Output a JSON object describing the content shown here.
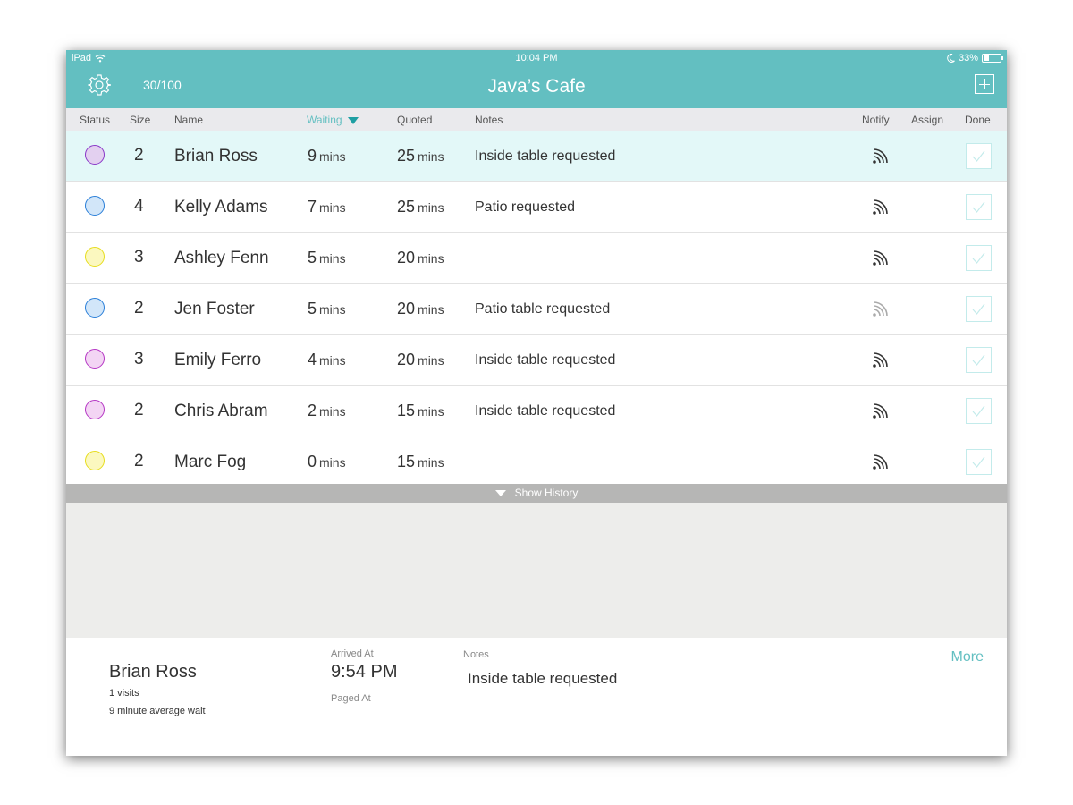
{
  "status_bar": {
    "carrier": "iPad",
    "time": "10:04 PM",
    "battery": "33%"
  },
  "header": {
    "count": "30/100",
    "title": "Java’s Cafe"
  },
  "columns": {
    "status": "Status",
    "size": "Size",
    "name": "Name",
    "waiting": "Waiting",
    "quoted": "Quoted",
    "notes": "Notes",
    "notify": "Notify",
    "assign": "Assign",
    "done": "Done"
  },
  "colors": {
    "accent": "#63bfc1",
    "purple": {
      "fill": "#e3d0f0",
      "stroke": "#8a39c8"
    },
    "blue": {
      "fill": "#d2e6f9",
      "stroke": "#2b7fd8"
    },
    "yellow": {
      "fill": "#fbf8bf",
      "stroke": "#e7dd1e"
    },
    "magenta": {
      "fill": "#f3d5f4",
      "stroke": "#b536c4"
    }
  },
  "rows": [
    {
      "status": "purple",
      "size": "2",
      "name": "Brian Ross",
      "waiting": "9",
      "quoted": "25",
      "notes": "Inside table requested",
      "notify_icon": "rss-icon",
      "notify_active": true,
      "selected": true
    },
    {
      "status": "blue",
      "size": "4",
      "name": "Kelly Adams",
      "waiting": "7",
      "quoted": "25",
      "notes": "Patio requested",
      "notify_icon": "rss-icon",
      "notify_active": true,
      "selected": false
    },
    {
      "status": "yellow",
      "size": "3",
      "name": "Ashley Fenn",
      "waiting": "5",
      "quoted": "20",
      "notes": "",
      "notify_icon": "rss-icon",
      "notify_active": true,
      "selected": false
    },
    {
      "status": "blue",
      "size": "2",
      "name": "Jen Foster",
      "waiting": "5",
      "quoted": "20",
      "notes": "Patio table requested",
      "notify_icon": "rss-icon",
      "notify_active": false,
      "selected": false
    },
    {
      "status": "magenta",
      "size": "3",
      "name": "Emily Ferro",
      "waiting": "4",
      "quoted": "20",
      "notes": "Inside table requested",
      "notify_icon": "rss-icon",
      "notify_active": true,
      "selected": false
    },
    {
      "status": "magenta",
      "size": "2",
      "name": "Chris Abram",
      "waiting": "2",
      "quoted": "15",
      "notes": "Inside table requested",
      "notify_icon": "rss-icon",
      "notify_active": true,
      "selected": false
    },
    {
      "status": "yellow",
      "size": "2",
      "name": "Marc Fog",
      "waiting": "0",
      "quoted": "15",
      "notes": "",
      "notify_icon": "rss-icon",
      "notify_active": true,
      "selected": false
    }
  ],
  "units": {
    "mins": "mins"
  },
  "history": {
    "label": "Show History"
  },
  "detail": {
    "name": "Brian Ross",
    "visits": "1 visits",
    "average": "9 minute average wait",
    "arrived_label": "Arrived At",
    "arrived": "9:54 PM",
    "paged_label": "Paged At",
    "notes_label": "Notes",
    "notes": "Inside table requested",
    "more": "More"
  }
}
